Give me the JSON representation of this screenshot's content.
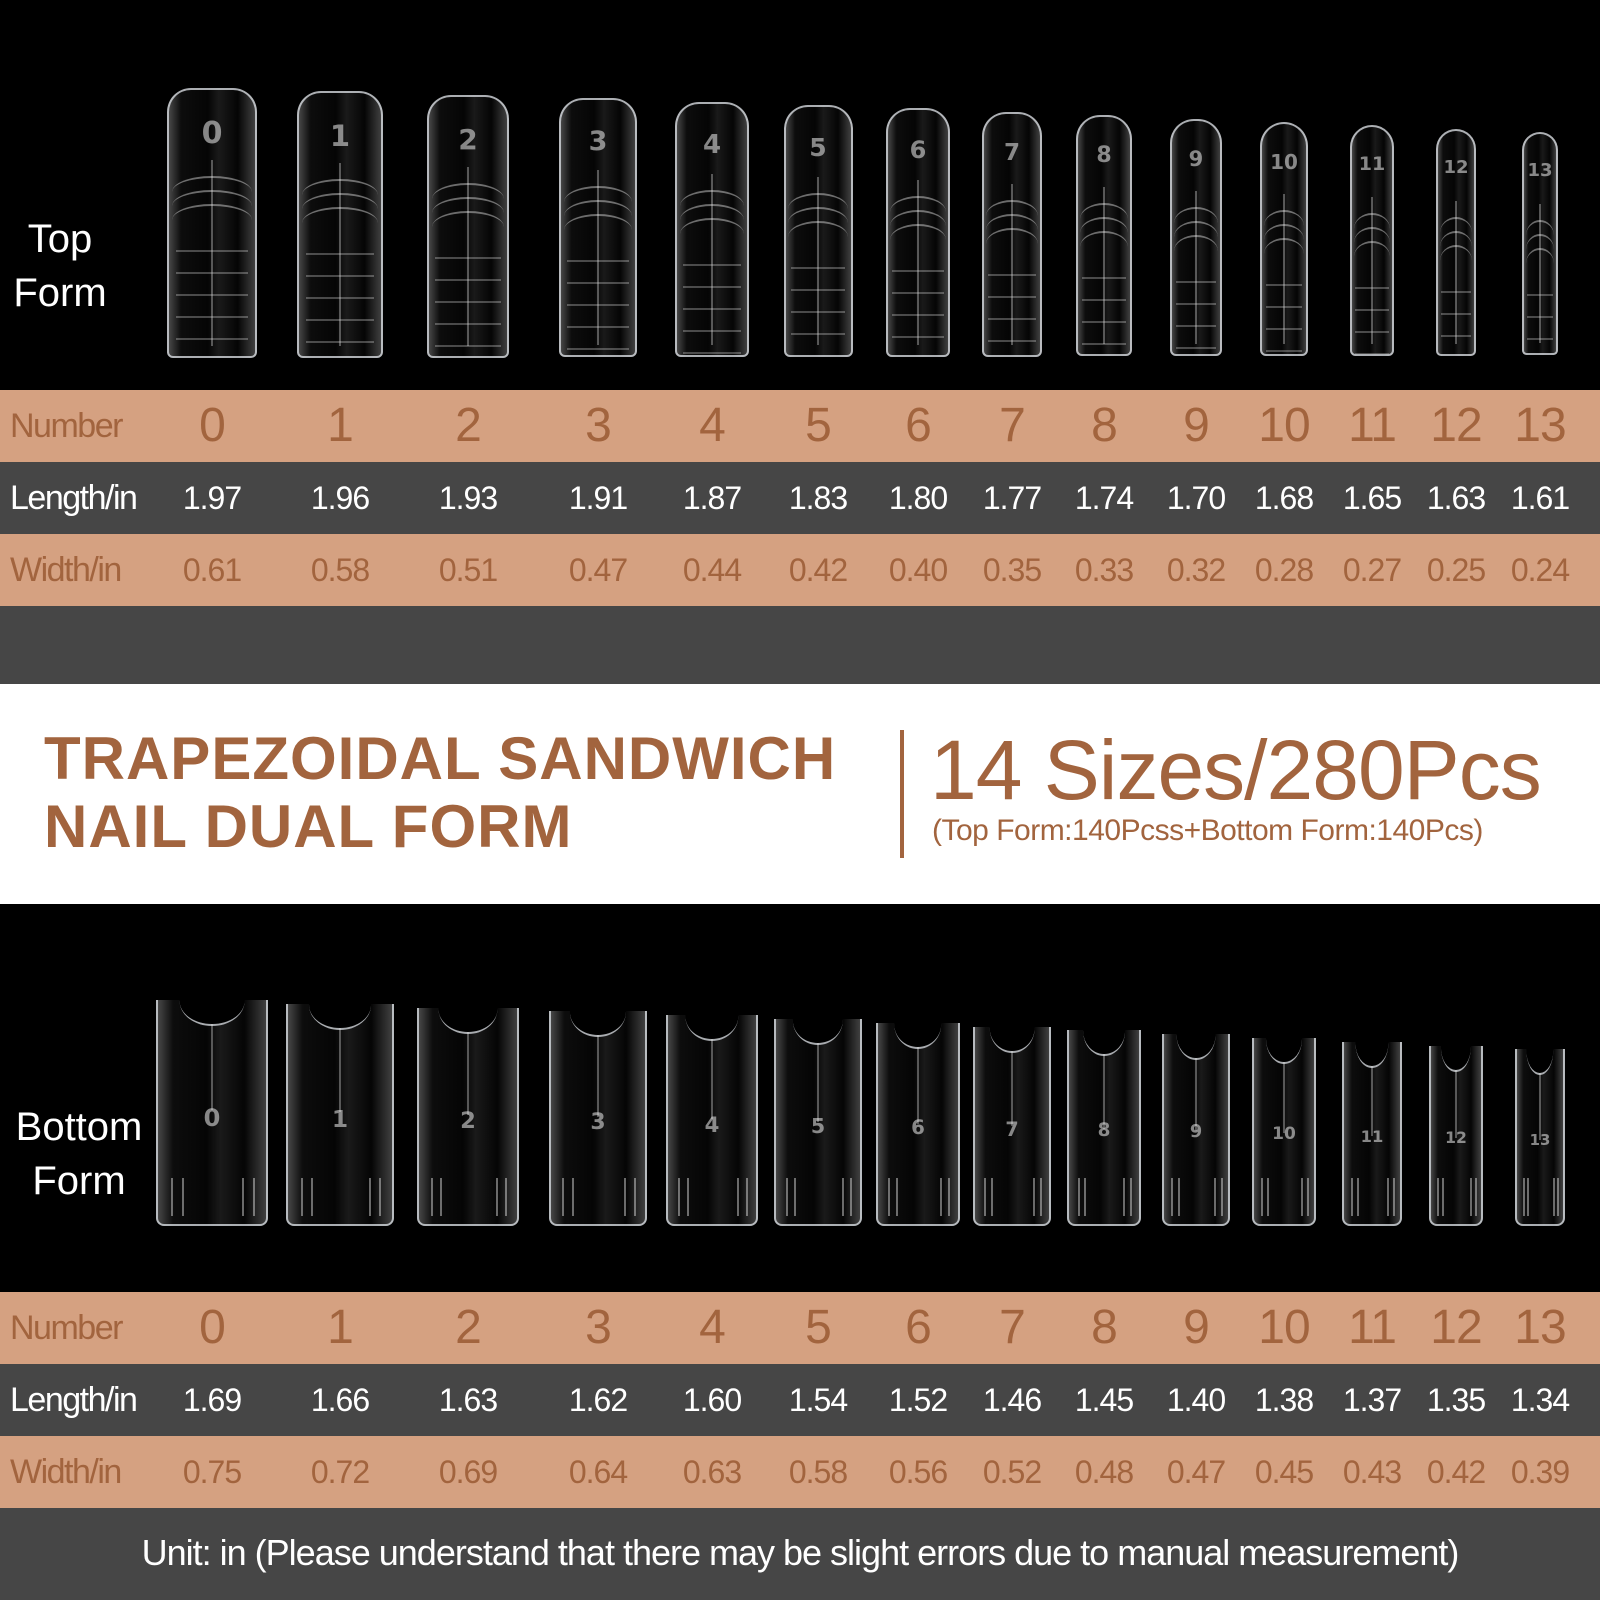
{
  "top_section": {
    "label": "Top\nForm",
    "row_labels": {
      "number": "Number",
      "length": "Length/in",
      "width": "Width/in"
    },
    "numbers": [
      "0",
      "1",
      "2",
      "3",
      "4",
      "5",
      "6",
      "7",
      "8",
      "9",
      "10",
      "11",
      "12",
      "13"
    ],
    "lengths": [
      "1.97",
      "1.96",
      "1.93",
      "1.91",
      "1.87",
      "1.83",
      "1.80",
      "1.77",
      "1.74",
      "1.70",
      "1.68",
      "1.65",
      "1.63",
      "1.61"
    ],
    "widths": [
      "0.61",
      "0.58",
      "0.51",
      "0.47",
      "0.44",
      "0.42",
      "0.40",
      "0.35",
      "0.33",
      "0.32",
      "0.28",
      "0.27",
      "0.25",
      "0.24"
    ]
  },
  "banner": {
    "title_line1": "TRAPEZOIDAL SANDWICH",
    "title_line2": "NAIL DUAL FORM",
    "sizes": "14 Sizes/280Pcs",
    "breakdown": "(Top Form:140Pcss+Bottom Form:140Pcs)"
  },
  "bottom_section": {
    "label": "Bottom\nForm",
    "row_labels": {
      "number": "Number",
      "length": "Length/in",
      "width": "Width/in"
    },
    "numbers": [
      "0",
      "1",
      "2",
      "3",
      "4",
      "5",
      "6",
      "7",
      "8",
      "9",
      "10",
      "11",
      "12",
      "13"
    ],
    "lengths": [
      "1.69",
      "1.66",
      "1.63",
      "1.62",
      "1.60",
      "1.54",
      "1.52",
      "1.46",
      "1.45",
      "1.40",
      "1.38",
      "1.37",
      "1.35",
      "1.34"
    ],
    "widths": [
      "0.75",
      "0.72",
      "0.69",
      "0.64",
      "0.63",
      "0.58",
      "0.56",
      "0.52",
      "0.48",
      "0.47",
      "0.45",
      "0.43",
      "0.42",
      "0.39"
    ]
  },
  "footer": {
    "note": "Unit: in (Please understand that there may be slight errors due to manual measurement)"
  },
  "colors": {
    "brand_brown": "#a2643e",
    "tan_band": "#d5a181",
    "dark_band": "#464646",
    "background": "#000000"
  }
}
